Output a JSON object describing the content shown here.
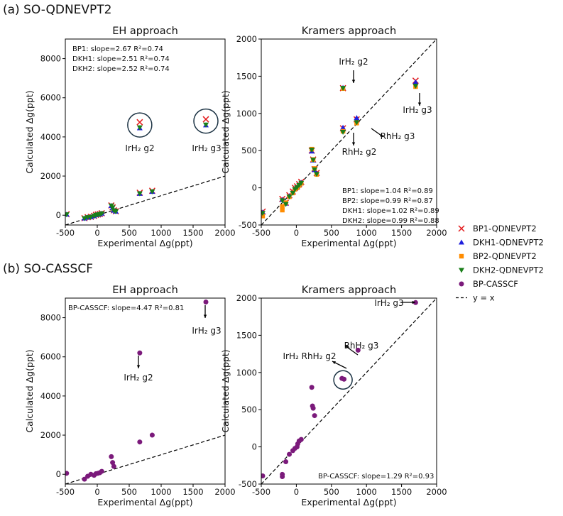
{
  "sections": [
    {
      "label": "(a) SO-QDNEVPT2"
    },
    {
      "label": "(b) SO-CASSCF"
    }
  ],
  "legend": [
    {
      "name": "BP1-QDNEVPT2",
      "marker": "x",
      "color": "#e31a1c"
    },
    {
      "name": "DKH1-QDNEVPT2",
      "marker": "tri-up",
      "color": "#1f1fdd"
    },
    {
      "name": "BP2-QDNEVPT2",
      "marker": "square",
      "color": "#ff8c00"
    },
    {
      "name": "DKH2-QDNEVPT2",
      "marker": "tri-down",
      "color": "#1a7f1a"
    },
    {
      "name": "BP-CASSCF",
      "marker": "circle",
      "color": "#7b1a7b"
    },
    {
      "name": "y = x",
      "marker": "dashed-line",
      "color": "#000000"
    }
  ],
  "chart_data": [
    {
      "id": "a-eh",
      "type": "scatter",
      "title": "EH approach",
      "xlabel": "Experimental Δg(ppt)",
      "ylabel": "Calculated Δg(ppt)",
      "xlim": [
        -500,
        2000
      ],
      "ylim": [
        -500,
        9000
      ],
      "xticks": [
        -500,
        0,
        500,
        1000,
        1500,
        2000
      ],
      "yticks": [
        0,
        2000,
        4000,
        6000,
        8000
      ],
      "reference_line": "y = x",
      "stats": [
        "BP1:     slope=2.67  R²=0.74",
        "DKH1:  slope=2.51  R²=0.74",
        "DKH2:  slope=2.52  R²=0.74"
      ],
      "annotations": [
        {
          "text": "IrH₂ g2",
          "x": 665,
          "y": 4500,
          "circled": true
        },
        {
          "text": "IrH₂ g3",
          "x": 1700,
          "y": 4700,
          "circled": true
        }
      ],
      "series": [
        {
          "name": "BP1-QDNEVPT2",
          "marker": "x",
          "color": "#e31a1c",
          "x": [
            -480,
            -200,
            -150,
            -100,
            -50,
            -20,
            10,
            40,
            70,
            220,
            240,
            260,
            290,
            665,
            860,
            665,
            1700
          ],
          "y": [
            50,
            -150,
            -100,
            -80,
            -30,
            20,
            40,
            60,
            100,
            500,
            400,
            250,
            200,
            1150,
            1250,
            4750,
            4900
          ]
        },
        {
          "name": "DKH1-QDNEVPT2",
          "marker": "tri-up",
          "color": "#1f1fdd",
          "x": [
            -480,
            -200,
            -150,
            -100,
            -50,
            -20,
            10,
            40,
            70,
            220,
            240,
            260,
            290,
            665,
            860,
            665,
            1700
          ],
          "y": [
            40,
            -160,
            -110,
            -90,
            -40,
            10,
            30,
            50,
            90,
            480,
            380,
            240,
            190,
            1100,
            1200,
            4450,
            4600
          ]
        },
        {
          "name": "DKH2-QDNEVPT2",
          "marker": "tri-down",
          "color": "#1a7f1a",
          "x": [
            -480,
            -200,
            -150,
            -100,
            -50,
            -20,
            10,
            40,
            70,
            220,
            240,
            260,
            290,
            665,
            860,
            665,
            1700
          ],
          "y": [
            40,
            -160,
            -110,
            -90,
            -40,
            10,
            30,
            50,
            90,
            490,
            390,
            240,
            190,
            1110,
            1210,
            4480,
            4620
          ]
        }
      ]
    },
    {
      "id": "a-kr",
      "type": "scatter",
      "title": "Kramers approach",
      "xlabel": "Experimental Δg(ppt)",
      "ylabel": "Calculated Δg(ppt)",
      "xlim": [
        -500,
        2000
      ],
      "ylim": [
        -500,
        2000
      ],
      "xticks": [
        -500,
        0,
        500,
        1000,
        1500,
        2000
      ],
      "yticks": [
        -500,
        0,
        500,
        1000,
        1500,
        2000
      ],
      "reference_line": "y = x",
      "stats": [
        "BP1:     slope=1.04  R²=0.89",
        "BP2:     slope=0.99  R²=0.87",
        "DKH1:  slope=1.02  R²=0.89",
        "DKH2:  slope=0.99  R²=0.88"
      ],
      "annotations": [
        {
          "text": "IrH₂ g2",
          "x": 665,
          "y": 1345,
          "arrow": "up"
        },
        {
          "text": "IrH₂ g3",
          "x": 1700,
          "y": 1400,
          "arrow": "down"
        },
        {
          "text": "RhH₂ g3",
          "x": 880,
          "y": 890,
          "arrow": "down-right"
        },
        {
          "text": "RhH₂ g2",
          "x": 665,
          "y": 770,
          "arrow": "down"
        }
      ],
      "series": [
        {
          "name": "BP1-QDNEVPT2",
          "marker": "x",
          "color": "#e31a1c",
          "x": [
            -480,
            -200,
            -150,
            -100,
            -50,
            -20,
            10,
            40,
            70,
            220,
            240,
            260,
            290,
            665,
            860,
            665,
            1700
          ],
          "y": [
            -320,
            -150,
            -200,
            -100,
            -50,
            0,
            20,
            50,
            80,
            500,
            380,
            250,
            200,
            800,
            920,
            1340,
            1440
          ]
        },
        {
          "name": "DKH1-QDNEVPT2",
          "marker": "tri-up",
          "color": "#1f1fdd",
          "x": [
            -480,
            -200,
            -150,
            -100,
            -50,
            -20,
            10,
            40,
            70,
            220,
            240,
            260,
            290,
            665,
            860,
            665,
            1700
          ],
          "y": [
            -330,
            -160,
            -210,
            -110,
            -60,
            -10,
            10,
            40,
            70,
            490,
            370,
            240,
            190,
            810,
            940,
            1345,
            1420
          ]
        },
        {
          "name": "BP2-QDNEVPT2",
          "marker": "square",
          "color": "#ff8c00",
          "x": [
            -480,
            -200,
            -200,
            -150,
            -100,
            -50,
            -20,
            10,
            40,
            70,
            220,
            240,
            260,
            290,
            665,
            860,
            665,
            1700
          ],
          "y": [
            -380,
            -250,
            -300,
            -200,
            -120,
            -70,
            -20,
            0,
            30,
            60,
            520,
            380,
            260,
            180,
            760,
            870,
            1335,
            1360
          ]
        },
        {
          "name": "DKH2-QDNEVPT2",
          "marker": "tri-down",
          "color": "#1a7f1a",
          "x": [
            -480,
            -200,
            -150,
            -100,
            -50,
            -20,
            10,
            40,
            70,
            220,
            240,
            260,
            290,
            665,
            860,
            665,
            1700
          ],
          "y": [
            -340,
            -170,
            -220,
            -120,
            -70,
            -20,
            5,
            35,
            65,
            510,
            375,
            245,
            185,
            750,
            880,
            1340,
            1370
          ]
        }
      ]
    },
    {
      "id": "b-eh",
      "type": "scatter",
      "title": "EH approach",
      "xlabel": "Experimental Δg(ppt)",
      "ylabel": "Calculated Δg(ppt)",
      "xlim": [
        -500,
        2000
      ],
      "ylim": [
        -500,
        9000
      ],
      "xticks": [
        -500,
        0,
        500,
        1000,
        1500,
        2000
      ],
      "yticks": [
        0,
        2000,
        4000,
        6000,
        8000
      ],
      "reference_line": "y = x",
      "stats": [
        "BP-CASSCF:  slope=4.47  R²=0.81"
      ],
      "annotations": [
        {
          "text": "IrH₂ g3",
          "x": 1700,
          "y": 8800,
          "arrow": "down"
        },
        {
          "text": "IrH₂ g2",
          "x": 665,
          "y": 6200,
          "arrow": "down"
        }
      ],
      "series": [
        {
          "name": "BP-CASSCF",
          "marker": "circle",
          "color": "#7b1a7b",
          "x": [
            -480,
            -200,
            -150,
            -100,
            -50,
            -20,
            10,
            40,
            70,
            220,
            240,
            260,
            665,
            860,
            665,
            1700
          ],
          "y": [
            50,
            -250,
            -100,
            0,
            -50,
            30,
            50,
            80,
            150,
            900,
            600,
            400,
            1650,
            2000,
            6200,
            8800
          ]
        }
      ]
    },
    {
      "id": "b-kr",
      "type": "scatter",
      "title": "Kramers approach",
      "xlabel": "Experimental Δg(ppt)",
      "ylabel": "Calculated Δg(ppt)",
      "xlim": [
        -500,
        2000
      ],
      "ylim": [
        -500,
        2000
      ],
      "xticks": [
        -500,
        0,
        500,
        1000,
        1500,
        2000
      ],
      "yticks": [
        -500,
        0,
        500,
        1000,
        1500,
        2000
      ],
      "reference_line": "y = x",
      "stats": [
        "BP-CASSCF:  slope=1.29  R²=0.93"
      ],
      "annotations": [
        {
          "text": "IrH₂ g3",
          "x": 1700,
          "y": 1940,
          "arrow": "right"
        },
        {
          "text": "RhH₂ g3",
          "x": 880,
          "y": 1300,
          "arrow": "down-right"
        },
        {
          "text": "IrH₂ RhH₂ g2",
          "x": 665,
          "y": 910,
          "circled": true
        }
      ],
      "series": [
        {
          "name": "BP-CASSCF",
          "marker": "circle",
          "color": "#7b1a7b",
          "x": [
            -480,
            -200,
            -200,
            -150,
            -100,
            -50,
            -20,
            10,
            20,
            40,
            70,
            220,
            230,
            240,
            260,
            650,
            680,
            880,
            1700
          ],
          "y": [
            -390,
            -370,
            -400,
            -200,
            -100,
            -50,
            -20,
            0,
            40,
            80,
            100,
            800,
            550,
            520,
            420,
            920,
            910,
            1300,
            1940
          ]
        }
      ]
    }
  ]
}
